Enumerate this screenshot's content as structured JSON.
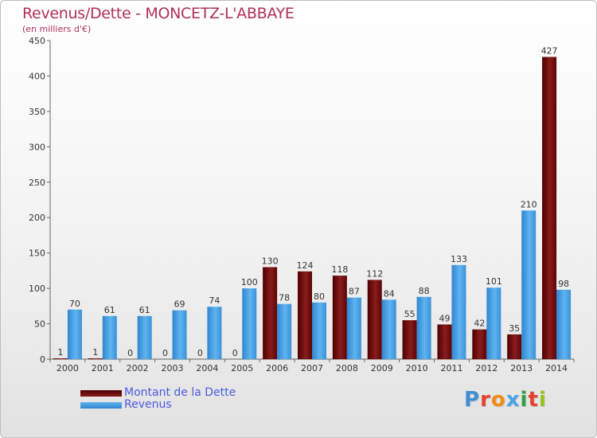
{
  "header": {
    "title": "Revenus/Dette - MONCETZ-L'ABBAYE",
    "subtitle": "(en milliers d'€)"
  },
  "legend": {
    "items": [
      {
        "label": "Montant de la Dette",
        "color": "#7a1010"
      },
      {
        "label": "Revenus",
        "color": "#4aa3e6"
      }
    ]
  },
  "logo": {
    "text": "Proxiti",
    "letters": [
      {
        "char": "P",
        "color": "#3f8fd0"
      },
      {
        "char": "r",
        "color": "#e8402f"
      },
      {
        "char": "o",
        "color": "#f08c1a"
      },
      {
        "char": "x",
        "color": "#4aa3e6"
      },
      {
        "char": "i",
        "color": "#2f9e44"
      },
      {
        "char": "t",
        "color": "#e8402f"
      },
      {
        "char": "i",
        "color": "#9bc21a"
      }
    ]
  },
  "chart_data": {
    "type": "bar",
    "categories": [
      "2000",
      "2001",
      "2002",
      "2003",
      "2004",
      "2005",
      "2006",
      "2007",
      "2008",
      "2009",
      "2010",
      "2011",
      "2012",
      "2013",
      "2014"
    ],
    "series": [
      {
        "name": "Montant de la Dette",
        "color": "#7a1010",
        "values": [
          1,
          1,
          0,
          0,
          0,
          0,
          130,
          124,
          118,
          112,
          55,
          49,
          42,
          35,
          427
        ]
      },
      {
        "name": "Revenus",
        "color": "#4aa3e6",
        "values": [
          70,
          61,
          61,
          69,
          74,
          100,
          78,
          80,
          87,
          84,
          88,
          133,
          101,
          210,
          98
        ]
      }
    ],
    "ylim": [
      0,
      450
    ],
    "yticks": [
      0,
      50,
      100,
      150,
      200,
      250,
      300,
      350,
      400,
      450
    ],
    "grid": false,
    "legend_position": "bottom-left"
  }
}
